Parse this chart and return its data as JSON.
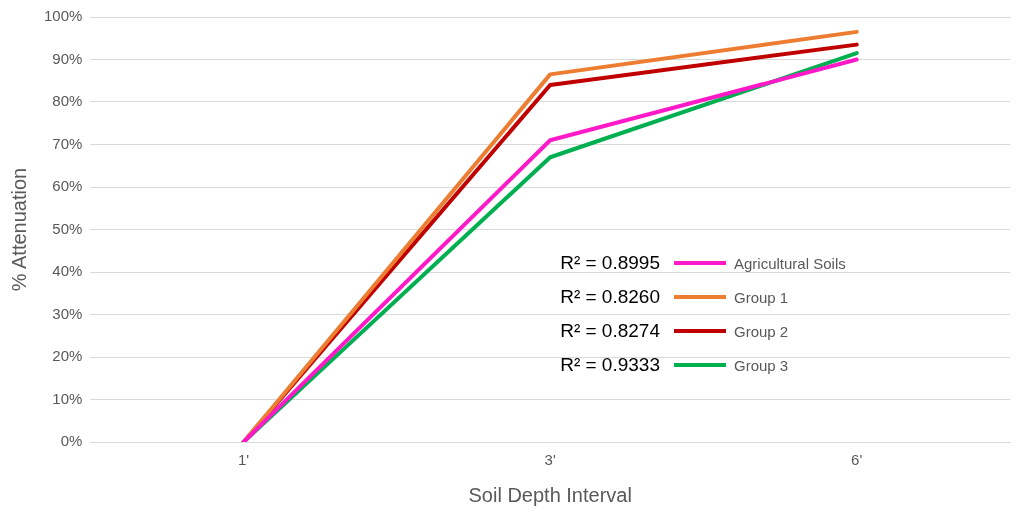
{
  "chart_data": {
    "type": "line",
    "xlabel": "Soil Depth Interval",
    "ylabel": "% Attenuation",
    "categories": [
      "1'",
      "3'",
      "6'"
    ],
    "series": [
      {
        "name": "Agricultural Soils",
        "color": "#ff19c8",
        "values": [
          0,
          71,
          90
        ]
      },
      {
        "name": "Group 1",
        "color": "#ed7d31",
        "values": [
          0,
          86.5,
          96.5
        ]
      },
      {
        "name": "Group 2",
        "color": "#c00000",
        "values": [
          0,
          84,
          93.5
        ]
      },
      {
        "name": "Group 3",
        "color": "#00b050",
        "values": [
          0,
          67,
          91.5
        ]
      }
    ],
    "ylim": [
      0,
      100
    ],
    "yticks": [
      {
        "value": 0,
        "label": "0%"
      },
      {
        "value": 10,
        "label": "10%"
      },
      {
        "value": 20,
        "label": "20%"
      },
      {
        "value": 30,
        "label": "30%"
      },
      {
        "value": 40,
        "label": "40%"
      },
      {
        "value": 50,
        "label": "50%"
      },
      {
        "value": 60,
        "label": "60%"
      },
      {
        "value": 70,
        "label": "70%"
      },
      {
        "value": 80,
        "label": "80%"
      },
      {
        "value": 90,
        "label": "90%"
      },
      {
        "value": 100,
        "label": "100%"
      }
    ],
    "grid": "y",
    "legend": "right",
    "marker": "none",
    "line_style": "solid",
    "annotations": [
      "R² = 0.8995",
      "R² = 0.8260",
      "R² = 0.8274",
      "R² = 0.9333"
    ]
  }
}
